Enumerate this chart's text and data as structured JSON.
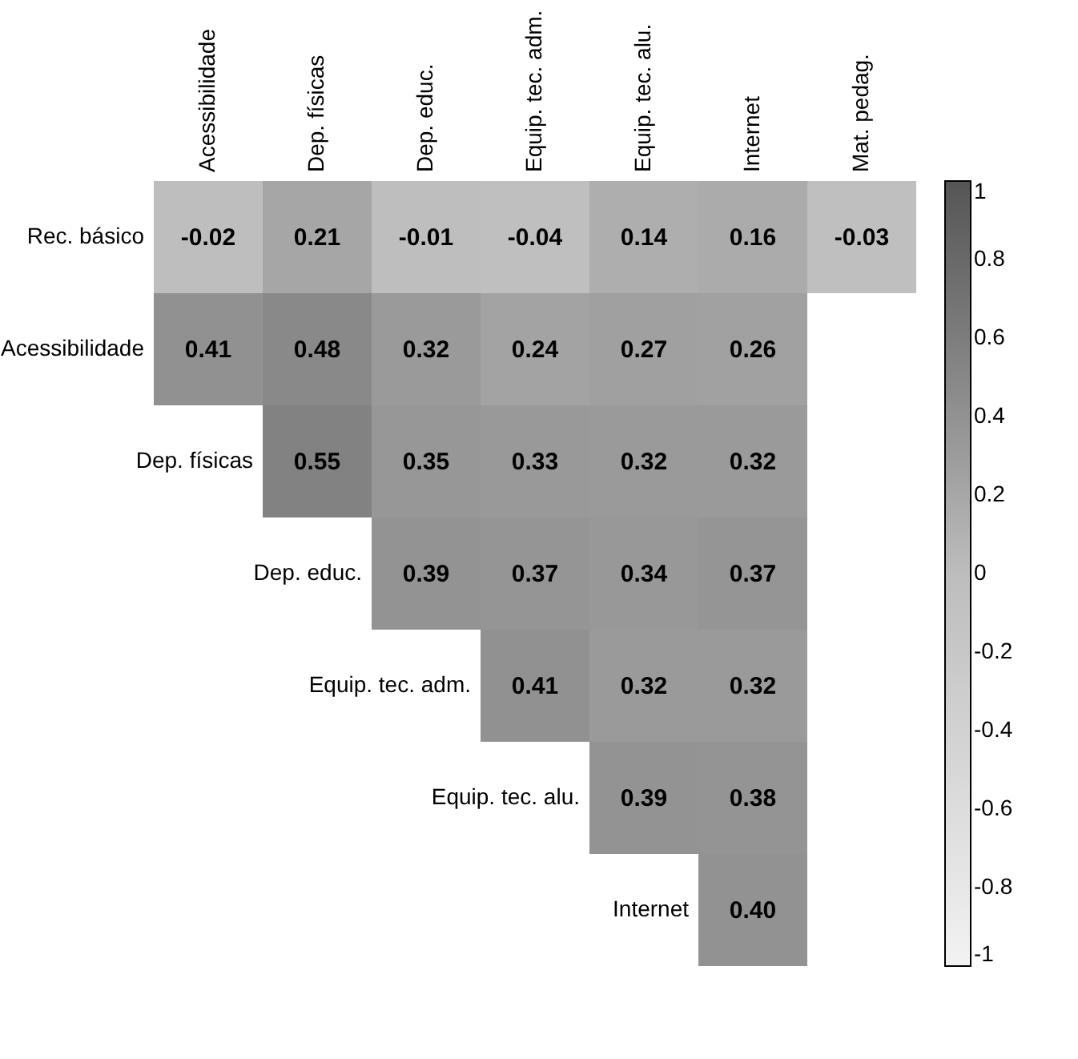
{
  "chart_data": {
    "type": "heatmap",
    "categories": [
      "Acessibilidade",
      "Dep. físicas",
      "Dep. educ.",
      "Equip. tec. adm.",
      "Equip. tec. alu.",
      "Internet",
      "Mat. pedag."
    ],
    "y_categories": [
      "Rec. básico",
      "Acessibilidade",
      "Dep. físicas",
      "Dep. educ.",
      "Equip. tec. adm.",
      "Equip. tec. alu.",
      "Internet"
    ],
    "cells": [
      [
        -0.02,
        0.21,
        -0.01,
        -0.04,
        0.14,
        0.16,
        -0.03
      ],
      [
        0.41,
        0.48,
        0.32,
        0.24,
        0.27,
        0.26,
        null
      ],
      [
        null,
        0.55,
        0.35,
        0.33,
        0.32,
        0.32,
        null
      ],
      [
        null,
        null,
        0.39,
        0.37,
        0.34,
        0.37,
        null
      ],
      [
        null,
        null,
        null,
        0.41,
        0.32,
        0.32,
        null
      ],
      [
        null,
        null,
        null,
        null,
        0.39,
        0.38,
        null
      ],
      [
        null,
        null,
        null,
        null,
        null,
        0.4,
        null
      ]
    ],
    "cell_labels": [
      [
        "-0.02",
        "0.21",
        "-0.01",
        "-0.04",
        "0.14",
        "0.16",
        "-0.03"
      ],
      [
        "0.41",
        "0.48",
        "0.32",
        "0.24",
        "0.27",
        "0.26",
        null
      ],
      [
        null,
        "0.55",
        "0.35",
        "0.33",
        "0.32",
        "0.32",
        null
      ],
      [
        null,
        null,
        "0.39",
        "0.37",
        "0.34",
        "0.37",
        null
      ],
      [
        null,
        null,
        null,
        "0.41",
        "0.32",
        "0.32",
        null
      ],
      [
        null,
        null,
        null,
        null,
        "0.39",
        "0.38",
        null
      ],
      [
        null,
        null,
        null,
        null,
        null,
        "0.40",
        null
      ]
    ],
    "clim": [
      -1,
      1
    ],
    "cticks": [
      1,
      0.8,
      0.6,
      0.4,
      0.2,
      0,
      -0.2,
      -0.4,
      -0.6,
      -0.8,
      -1
    ],
    "data_labels": true,
    "grid": false
  }
}
